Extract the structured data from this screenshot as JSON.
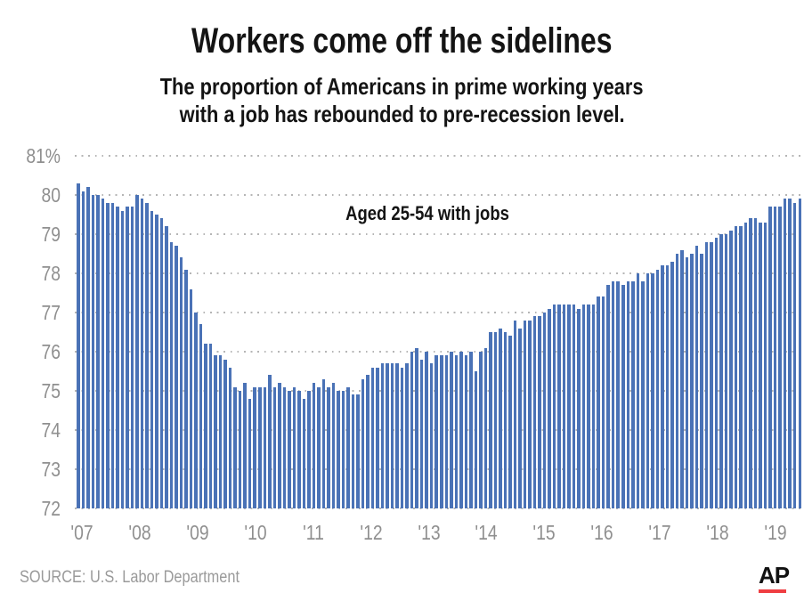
{
  "title": "Workers come off the sidelines",
  "subtitle_line1": "The proportion of Americans in prime working years",
  "subtitle_line2": "with a job has rebounded to pre-recession level.",
  "annotation": "Aged 25-54 with jobs",
  "source": "SOURCE: U.S. Labor Department",
  "ap_logo_text": "AP",
  "colors": {
    "bar": "#4a72b6",
    "grid_dots": "#b5b5b5",
    "axis_text": "#8f8f8f",
    "title_text": "#141414",
    "ap_red": "#ef3e42"
  },
  "chart_data": {
    "type": "bar",
    "title": "Workers come off the sidelines",
    "subtitle": "The proportion of Americans in prime working years with a job has rebounded to pre-recession level.",
    "series_label": "Aged 25-54 with jobs",
    "frequency": "monthly",
    "x_start": "2007-01",
    "x_end": "2019-04",
    "ylim": [
      72,
      81
    ],
    "grid": "dotted horizontal",
    "y_ticks": [
      "81%",
      "80",
      "79",
      "78",
      "77",
      "76",
      "75",
      "74",
      "73",
      "72"
    ],
    "y_tick_values": [
      81,
      80,
      79,
      78,
      77,
      76,
      75,
      74,
      73,
      72
    ],
    "x_tick_labels": [
      "'07",
      "'08",
      "'09",
      "'10",
      "'11",
      "'12",
      "'13",
      "'14",
      "'15",
      "'16",
      "'17",
      "'18",
      "'19"
    ],
    "values": [
      80.3,
      80.1,
      80.2,
      80.0,
      80.0,
      79.9,
      79.8,
      79.8,
      79.7,
      79.6,
      79.7,
      79.7,
      80.0,
      79.9,
      79.8,
      79.6,
      79.5,
      79.4,
      79.2,
      78.8,
      78.7,
      78.4,
      78.1,
      77.6,
      77.0,
      76.7,
      76.2,
      76.2,
      75.9,
      75.9,
      75.8,
      75.6,
      75.1,
      75.0,
      75.2,
      74.8,
      75.1,
      75.1,
      75.1,
      75.4,
      75.1,
      75.2,
      75.1,
      75.0,
      75.1,
      75.0,
      74.8,
      75.0,
      75.2,
      75.1,
      75.3,
      75.1,
      75.2,
      75.0,
      75.0,
      75.1,
      74.9,
      74.9,
      75.3,
      75.4,
      75.6,
      75.6,
      75.7,
      75.7,
      75.7,
      75.7,
      75.6,
      75.7,
      76.0,
      76.1,
      75.8,
      76.0,
      75.7,
      75.9,
      75.9,
      75.9,
      76.0,
      75.9,
      76.0,
      75.9,
      76.0,
      75.5,
      76.0,
      76.1,
      76.5,
      76.5,
      76.6,
      76.5,
      76.4,
      76.8,
      76.6,
      76.8,
      76.8,
      76.9,
      76.9,
      77.0,
      77.1,
      77.2,
      77.2,
      77.2,
      77.2,
      77.2,
      77.1,
      77.2,
      77.2,
      77.2,
      77.4,
      77.4,
      77.7,
      77.8,
      77.8,
      77.7,
      77.8,
      77.8,
      78.0,
      77.8,
      78.0,
      78.0,
      78.1,
      78.2,
      78.2,
      78.3,
      78.5,
      78.6,
      78.4,
      78.5,
      78.7,
      78.5,
      78.8,
      78.8,
      78.9,
      79.0,
      79.0,
      79.1,
      79.2,
      79.2,
      79.3,
      79.4,
      79.4,
      79.3,
      79.3,
      79.7,
      79.7,
      79.7,
      79.9,
      79.9,
      79.8,
      79.9
    ]
  }
}
